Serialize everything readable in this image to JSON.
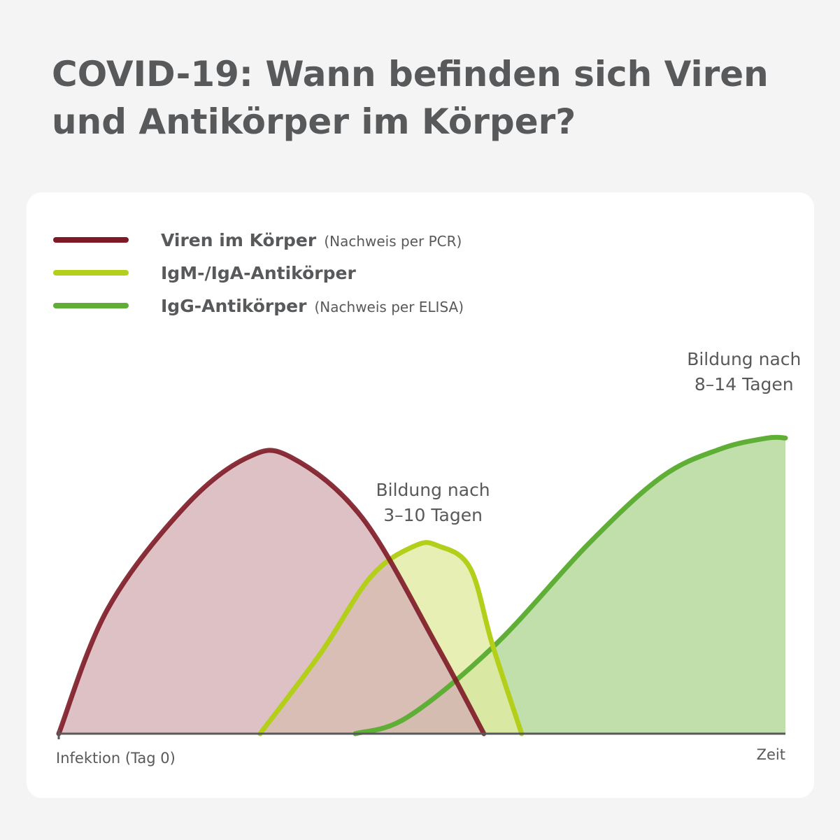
{
  "title": {
    "line1": "COVID-19: Wann befinden sich Viren",
    "line2": "und Antikörper im Körper?"
  },
  "chart_data": {
    "type": "area",
    "title": "COVID-19: Wann befinden sich Viren und Antikörper im Körper?",
    "xlabel_start": "Infektion (Tag 0)",
    "xlabel_end": "Zeit",
    "ylabel": "",
    "grid": false,
    "legend_position": "top-left",
    "x_ticks": [],
    "y_ticks": [],
    "series": [
      {
        "name": "Viren im Körper",
        "note": "(Nachweis per PCR)",
        "color": "#7d1a26",
        "fill": "#d3b0b5",
        "x": [
          0,
          0.067,
          0.173,
          0.26,
          0.32,
          0.418,
          0.522,
          0.585
        ],
        "y": [
          0,
          0.45,
          0.82,
          1.0,
          1.0,
          0.78,
          0.31,
          0
        ]
      },
      {
        "name": "IgM-/IgA-Antikörper",
        "note": "",
        "color": "#b3cf1a",
        "fill": "#e0eaa0",
        "x": [
          0.277,
          0.36,
          0.43,
          0.49,
          0.522,
          0.566,
          0.597,
          0.637
        ],
        "y": [
          0,
          0.29,
          0.57,
          0.68,
          0.68,
          0.6,
          0.32,
          0
        ]
      },
      {
        "name": "IgG-Antikörper",
        "note": "(Nachweis per ELISA)",
        "color": "#5fae35",
        "fill": "#c0dfab",
        "x": [
          0.408,
          0.48,
          0.6,
          0.73,
          0.83,
          0.91,
          0.975,
          1.0
        ],
        "y": [
          0,
          0.06,
          0.32,
          0.69,
          0.93,
          1.03,
          1.07,
          1.07
        ]
      }
    ],
    "annotations": [
      {
        "line1": "Bildung nach",
        "line2": "3–10 Tagen",
        "series": "IgM-/IgA-Antikörper"
      },
      {
        "line1": "Bildung nach",
        "line2": "8–14 Tagen",
        "series": "IgG-Antikörper"
      }
    ]
  }
}
